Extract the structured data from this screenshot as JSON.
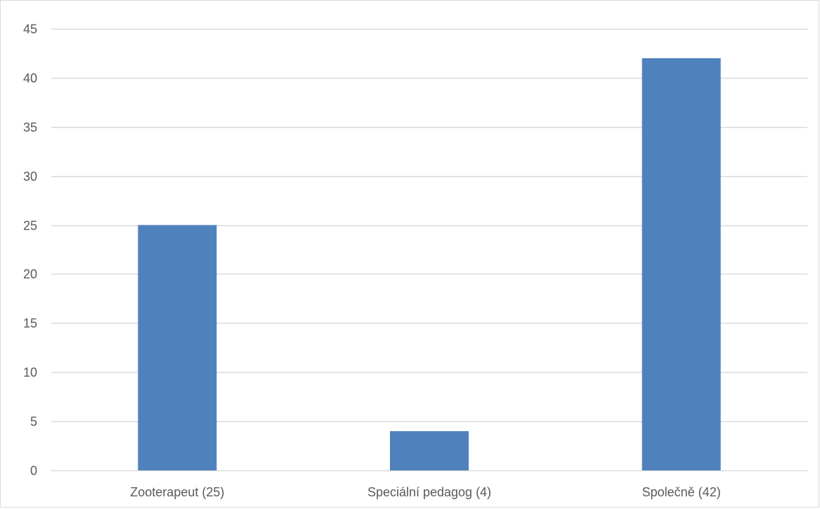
{
  "chart_data": {
    "type": "bar",
    "categories": [
      "Zooterapeut (25)",
      "Speciální pedagog (4)",
      "Společně (42)"
    ],
    "values": [
      25,
      4,
      42
    ],
    "title": "",
    "xlabel": "",
    "ylabel": "",
    "ylim": [
      0,
      45
    ],
    "yticks": [
      0,
      5,
      10,
      15,
      20,
      25,
      30,
      35,
      40,
      45
    ],
    "grid": true,
    "legend": "none",
    "bar_color": "#4f81bd",
    "grid_color": "#d9d9d9"
  }
}
